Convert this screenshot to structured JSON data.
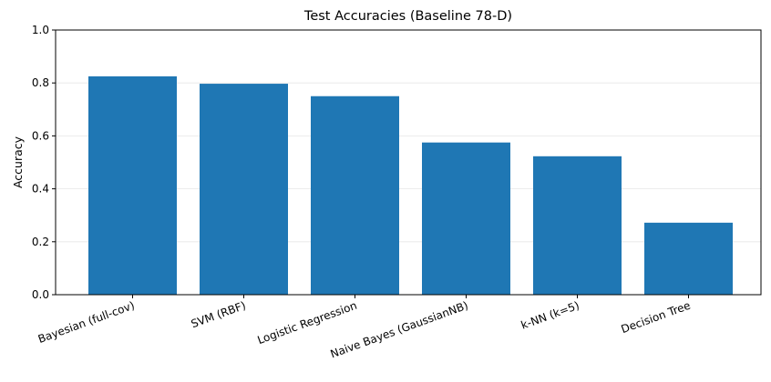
{
  "chart_data": {
    "type": "bar",
    "title": "Test Accuracies (Baseline 78-D)",
    "xlabel": "",
    "ylabel": "Accuracy",
    "categories": [
      "Bayesian (full-cov)",
      "SVM (RBF)",
      "Logistic Regression",
      "Naive Bayes (GaussianNB)",
      "k-NN (k=5)",
      "Decision Tree"
    ],
    "values": [
      0.825,
      0.797,
      0.75,
      0.575,
      0.523,
      0.272
    ],
    "ylim": [
      0,
      1.0
    ],
    "yticks": [
      "0.0",
      "0.2",
      "0.4",
      "0.6",
      "0.8",
      "1.0"
    ],
    "ytick_values": [
      0,
      0.2,
      0.4,
      0.6,
      0.8,
      1.0
    ],
    "grid": "y-axis, light",
    "legend": "none",
    "bar_color": "#1f77b4",
    "grid_color": "#e6e6e6"
  }
}
